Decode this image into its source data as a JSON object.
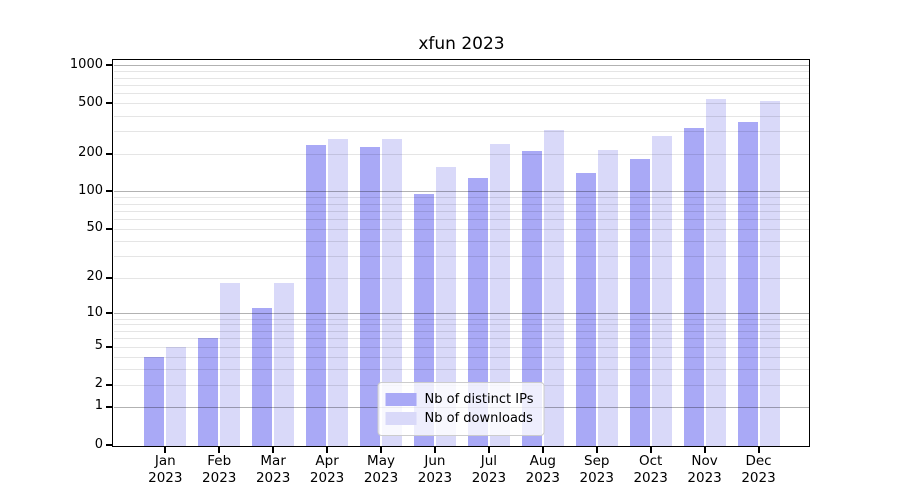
{
  "chart_data": {
    "type": "bar",
    "title": "xfun 2023",
    "yscale": "log1p",
    "categories": [
      "Jan",
      "Feb",
      "Mar",
      "Apr",
      "May",
      "Jun",
      "Jul",
      "Aug",
      "Sep",
      "Oct",
      "Nov",
      "Dec"
    ],
    "category_year": "2023",
    "yticks": [
      0,
      1,
      2,
      5,
      10,
      20,
      50,
      100,
      200,
      500,
      1000
    ],
    "ylim": [
      0,
      1100
    ],
    "grid": "horizontal major+minor, drawn over bars",
    "legend_position": "lower center",
    "series": [
      {
        "name": "Nb of distinct IPs",
        "color": "#a9a9f6",
        "values": [
          4,
          6,
          11,
          233,
          224,
          95,
          128,
          210,
          140,
          180,
          318,
          356
        ]
      },
      {
        "name": "Nb of downloads",
        "color": "#d9d9f9",
        "values": [
          5,
          18,
          18,
          260,
          260,
          158,
          240,
          306,
          215,
          277,
          540,
          520
        ]
      }
    ]
  }
}
